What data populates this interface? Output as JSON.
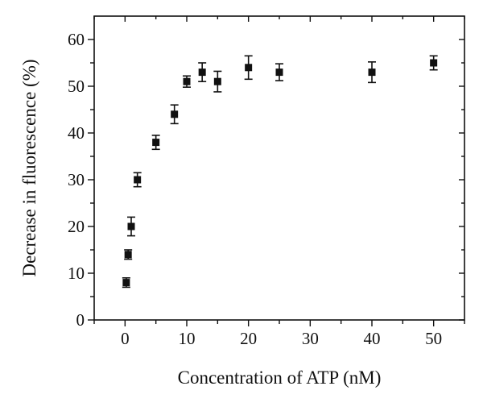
{
  "chart_data": {
    "type": "scatter",
    "title": "",
    "xlabel": "Concentration of ATP (nM)",
    "ylabel": "Decrease in fluorescence (%)",
    "xlim": [
      -5,
      55
    ],
    "ylim": [
      0,
      65
    ],
    "x_ticks": [
      0,
      10,
      20,
      30,
      40,
      50
    ],
    "x_tick_labels": [
      "0",
      "10",
      "20",
      "30",
      "40",
      "50"
    ],
    "y_ticks": [
      0,
      10,
      20,
      30,
      40,
      50,
      60
    ],
    "y_tick_labels": [
      "0",
      "10",
      "20",
      "30",
      "40",
      "50",
      "60"
    ],
    "grid": false,
    "marker": "square",
    "marker_color": "#111111",
    "series": [
      {
        "points": [
          {
            "x": 0.2,
            "y": 8,
            "err": 1
          },
          {
            "x": 0.5,
            "y": 14,
            "err": 1
          },
          {
            "x": 1,
            "y": 20,
            "err": 2
          },
          {
            "x": 2,
            "y": 30,
            "err": 1.5
          },
          {
            "x": 5,
            "y": 38,
            "err": 1.5
          },
          {
            "x": 8,
            "y": 44,
            "err": 2
          },
          {
            "x": 10,
            "y": 51,
            "err": 1.2
          },
          {
            "x": 12.5,
            "y": 53,
            "err": 2
          },
          {
            "x": 15,
            "y": 51,
            "err": 2.2
          },
          {
            "x": 20,
            "y": 54,
            "err": 2.5
          },
          {
            "x": 25,
            "y": 53,
            "err": 1.8
          },
          {
            "x": 40,
            "y": 53,
            "err": 2.2
          },
          {
            "x": 50,
            "y": 55,
            "err": 1.5
          }
        ]
      }
    ]
  }
}
